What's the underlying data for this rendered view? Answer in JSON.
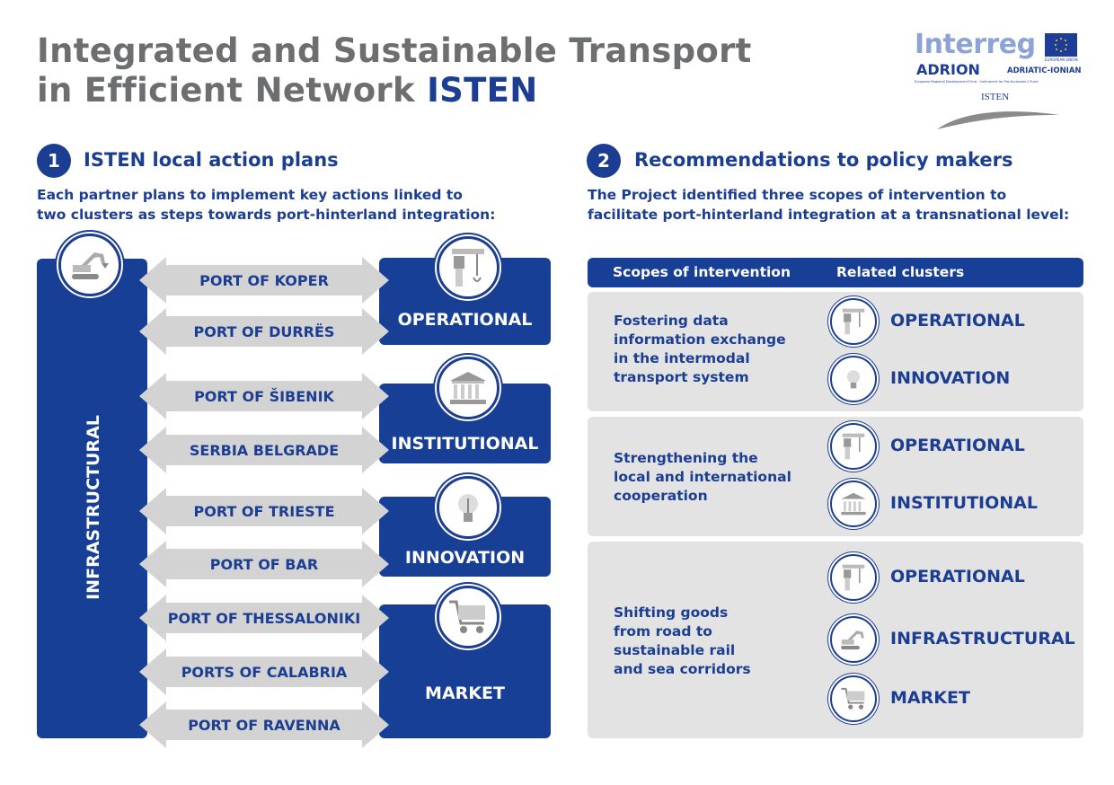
{
  "header": {
    "title_line1": "Integrated and Sustainable Transport",
    "title_line2_prefix": "in Efficient Network ",
    "title_highlight": "ISTEN"
  },
  "logo": {
    "brand": "Interreg",
    "program": "ADRION",
    "region": "ADRIATIC-IONIAN",
    "eu": "EUROPEAN UNION",
    "fund": "European Regional Development Fund - Instrument for Pre-Accession II Fund",
    "project": "ISTEN"
  },
  "section1": {
    "number": "1",
    "heading": "ISTEN local action plans",
    "desc_line1": "Each partner plans to implement key actions linked to",
    "desc_line2": "two clusters as steps towards port-hinterland integration:",
    "left_cluster": "INFRASTRUCTURAL",
    "partners": [
      "PORT OF KOPER",
      "PORT OF DURRËS",
      "PORT OF ŠIBENIK",
      "SERBIA BELGRADE",
      "PORT OF TRIESTE",
      "PORT OF BAR",
      "PORT OF THESSALONIKI",
      "PORTS OF CALABRIA",
      "PORT OF RAVENNA"
    ],
    "right_clusters": [
      "OPERATIONAL",
      "INSTITUTIONAL",
      "INNOVATION",
      "MARKET"
    ]
  },
  "section2": {
    "number": "2",
    "heading": "Recommendations to policy makers",
    "desc_line1": "The Project identified three scopes of intervention to",
    "desc_line2": "facilitate port-hinterland integration at a transnational level:",
    "table": {
      "col1": "Scopes of intervention",
      "col2": "Related clusters",
      "rows": [
        {
          "scope": [
            "Fostering data",
            "information exchange",
            "in the intermodal",
            "transport system"
          ],
          "clusters": [
            "OPERATIONAL",
            "INNOVATION"
          ]
        },
        {
          "scope": [
            "Strengthening the",
            "local and international",
            "cooperation"
          ],
          "clusters": [
            "OPERATIONAL",
            "INSTITUTIONAL"
          ]
        },
        {
          "scope": [
            "Shifting goods",
            "from road to",
            "sustainable rail",
            "and sea corridors"
          ],
          "clusters": [
            "OPERATIONAL",
            "INFRASTRUCTURAL",
            "MARKET"
          ]
        }
      ]
    }
  },
  "colors": {
    "brand_blue": "#173f95",
    "title_gray": "#6d6e70",
    "arrow_gray": "#d3d3d3",
    "row_gray": "#e3e3e3"
  },
  "icons": {
    "INFRASTRUCTURAL": "excavator-icon",
    "OPERATIONAL": "crane-icon",
    "INSTITUTIONAL": "building-icon",
    "INNOVATION": "lightbulb-icon",
    "MARKET": "cart-icon"
  }
}
